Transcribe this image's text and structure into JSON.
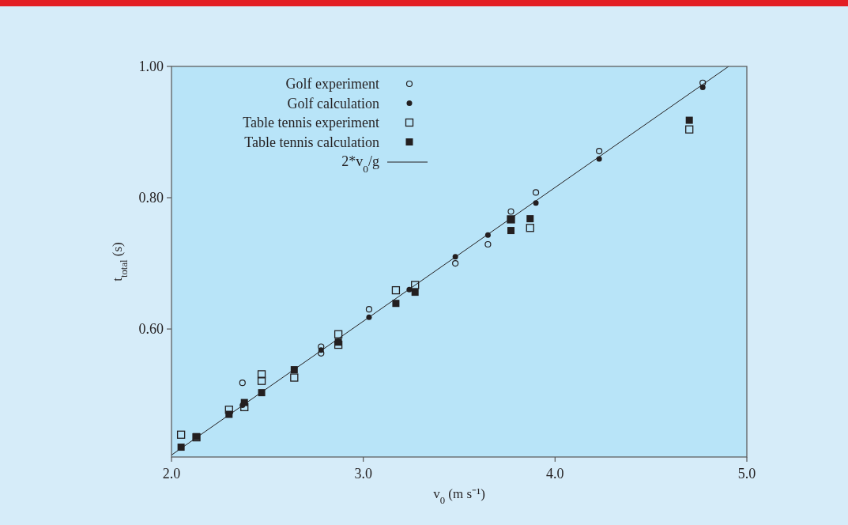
{
  "chart_data": {
    "type": "scatter",
    "xlabel": "v$_{0}$ (m s⁻¹)",
    "ylabel": "t$_{total}$ (s)",
    "xlim": [
      2.0,
      5.0
    ],
    "xticks": [
      {
        "value": 2,
        "label": "2.0"
      },
      {
        "value": 3,
        "label": "3.0"
      },
      {
        "value": 4,
        "label": "4.0"
      },
      {
        "value": 5,
        "label": "5.0"
      }
    ],
    "ylim": [
      0.405,
      1.0
    ],
    "yticks": [
      {
        "value": 0.6,
        "label": "0.60"
      },
      {
        "value": 0.8,
        "label": "0.80"
      },
      {
        "value": 1.0,
        "label": "1.00"
      }
    ],
    "grid": false,
    "legend": "top left",
    "series": [
      {
        "name": "Golf experiment",
        "color": "#231f20",
        "marker": "circle",
        "x": [
          2.37,
          2.78,
          2.78,
          3.03,
          3.48,
          3.65,
          3.77,
          3.9,
          4.23,
          4.77
        ],
        "values": [
          0.518,
          0.573,
          0.563,
          0.63,
          0.7,
          0.729,
          0.779,
          0.808,
          0.871,
          0.975
        ]
      },
      {
        "name": "Golf calculation",
        "color": "#231f20",
        "marker": "circle",
        "x": [
          2.37,
          2.78,
          3.03,
          3.24,
          3.48,
          3.65,
          3.9,
          4.23,
          4.77
        ],
        "values": [
          0.484,
          0.568,
          0.618,
          0.66,
          0.71,
          0.743,
          0.792,
          0.859,
          0.968
        ]
      },
      {
        "name": "Table tennis experiment",
        "color": "#231f20",
        "marker": "square",
        "x": [
          2.05,
          2.13,
          2.3,
          2.38,
          2.47,
          2.47,
          2.64,
          2.87,
          2.87,
          3.17,
          3.27,
          3.77,
          3.87,
          4.7
        ],
        "values": [
          0.439,
          0.435,
          0.477,
          0.481,
          0.531,
          0.521,
          0.526,
          0.592,
          0.576,
          0.659,
          0.667,
          0.767,
          0.754,
          0.904
        ]
      },
      {
        "name": "Table tennis calculation",
        "color": "#231f20",
        "marker": "square",
        "x": [
          2.05,
          2.13,
          2.3,
          2.38,
          2.47,
          2.64,
          2.87,
          3.17,
          3.27,
          3.77,
          3.77,
          3.87,
          4.7
        ],
        "values": [
          0.42,
          0.436,
          0.47,
          0.488,
          0.503,
          0.538,
          0.58,
          0.639,
          0.656,
          0.767,
          0.75,
          0.768,
          0.918
        ]
      },
      {
        "name": "2*v$_{0}$/g",
        "type": "line",
        "color": "#231f20",
        "marker": "none",
        "line_style": "solid",
        "x": [
          2.0,
          4.905
        ],
        "values": [
          0.408,
          1.0
        ]
      }
    ]
  }
}
